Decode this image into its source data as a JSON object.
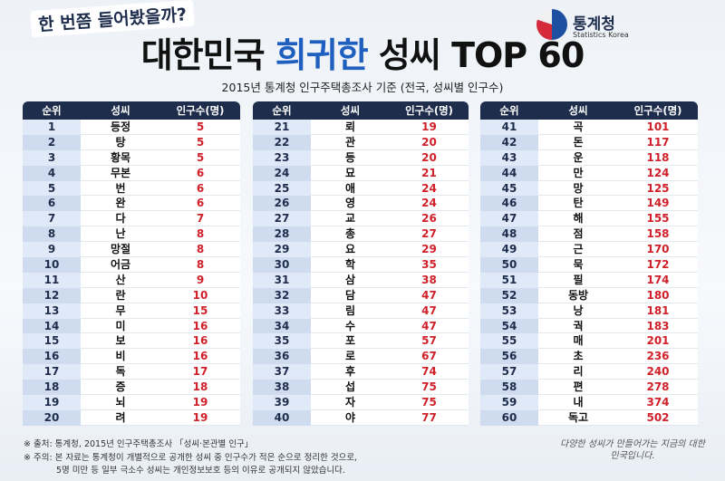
{
  "header": {
    "kicker": "한 번쯤 들어봤을까?",
    "title": {
      "pre": "대한민국",
      "highlight": "희귀한",
      "post": "성씨 TOP 60"
    },
    "logo": {
      "name": "통계청",
      "english": "Statistics Korea"
    },
    "subtitle": "2015년 통계청 인구주택총조사 기준 (전국, 성씨별 인구수)"
  },
  "table": {
    "columns": [
      "순위",
      "성씨",
      "인구수(명)"
    ],
    "parts": [
      [
        [
          "1",
          "등정",
          "5"
        ],
        [
          "2",
          "탕",
          "5"
        ],
        [
          "3",
          "황목",
          "5"
        ],
        [
          "4",
          "무본",
          "6"
        ],
        [
          "5",
          "번",
          "6"
        ],
        [
          "6",
          "완",
          "6"
        ],
        [
          "7",
          "다",
          "7"
        ],
        [
          "8",
          "난",
          "8"
        ],
        [
          "9",
          "망절",
          "8"
        ],
        [
          "10",
          "어금",
          "8"
        ],
        [
          "11",
          "산",
          "9"
        ],
        [
          "12",
          "란",
          "10"
        ],
        [
          "13",
          "무",
          "15"
        ],
        [
          "14",
          "미",
          "16"
        ],
        [
          "15",
          "보",
          "16"
        ],
        [
          "16",
          "비",
          "16"
        ],
        [
          "17",
          "독",
          "17"
        ],
        [
          "18",
          "증",
          "18"
        ],
        [
          "19",
          "뇌",
          "19"
        ],
        [
          "20",
          "려",
          "19"
        ]
      ],
      [
        [
          "21",
          "뢰",
          "19"
        ],
        [
          "22",
          "관",
          "20"
        ],
        [
          "23",
          "등",
          "20"
        ],
        [
          "24",
          "묘",
          "21"
        ],
        [
          "25",
          "애",
          "24"
        ],
        [
          "26",
          "영",
          "24"
        ],
        [
          "27",
          "교",
          "26"
        ],
        [
          "28",
          "총",
          "27"
        ],
        [
          "29",
          "요",
          "29"
        ],
        [
          "30",
          "학",
          "35"
        ],
        [
          "31",
          "삼",
          "38"
        ],
        [
          "32",
          "담",
          "47"
        ],
        [
          "33",
          "림",
          "47"
        ],
        [
          "34",
          "수",
          "47"
        ],
        [
          "35",
          "포",
          "57"
        ],
        [
          "36",
          "로",
          "67"
        ],
        [
          "37",
          "후",
          "74"
        ],
        [
          "38",
          "섭",
          "75"
        ],
        [
          "39",
          "자",
          "75"
        ],
        [
          "40",
          "야",
          "77"
        ]
      ],
      [
        [
          "41",
          "곡",
          "101"
        ],
        [
          "42",
          "돈",
          "117"
        ],
        [
          "43",
          "운",
          "118"
        ],
        [
          "44",
          "만",
          "124"
        ],
        [
          "45",
          "망",
          "125"
        ],
        [
          "46",
          "탄",
          "149"
        ],
        [
          "47",
          "해",
          "155"
        ],
        [
          "48",
          "점",
          "158"
        ],
        [
          "49",
          "근",
          "170"
        ],
        [
          "50",
          "묵",
          "172"
        ],
        [
          "51",
          "필",
          "174"
        ],
        [
          "52",
          "동방",
          "180"
        ],
        [
          "53",
          "낭",
          "181"
        ],
        [
          "54",
          "궉",
          "183"
        ],
        [
          "55",
          "매",
          "201"
        ],
        [
          "56",
          "초",
          "236"
        ],
        [
          "57",
          "리",
          "240"
        ],
        [
          "58",
          "편",
          "278"
        ],
        [
          "59",
          "내",
          "374"
        ],
        [
          "60",
          "독고",
          "502"
        ]
      ]
    ]
  },
  "notes": [
    "※ 출처: 통계청, 2015년 인구주택총조사 「성씨·본관별 인구」",
    "※ 주의: 본 자료는 통계청이 개별적으로 공개한 성씨 중 인구수가 적은 순으로 정리한 것으로,",
    "5명 미만 등 일부 극소수 성씨는 개인정보보호 등의 이유로 공개되지 않았습니다."
  ],
  "closing": "다양한 성씨가 만들어가는 지금의 대한민국입니다."
}
